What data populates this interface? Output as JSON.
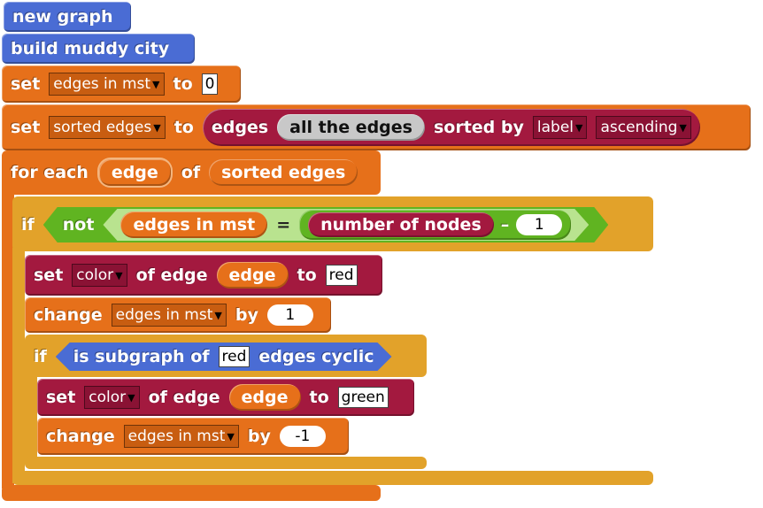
{
  "blocks": {
    "new_graph": "new graph",
    "build_city": "build muddy city",
    "set1": {
      "set": "set",
      "var": "edges in mst",
      "to": "to",
      "value": "0"
    },
    "set2": {
      "set": "set",
      "var": "sorted edges",
      "to": "to",
      "edges": "edges",
      "all_edges": "all the edges",
      "sorted_by": "sorted by",
      "key": "label",
      "order": "ascending"
    },
    "foreach": {
      "for_each": "for each",
      "item": "edge",
      "of": "of",
      "list": "sorted edges"
    },
    "if1": {
      "if": "if",
      "not": "not",
      "lhs": "edges in mst",
      "eq": "=",
      "nodes": "number of nodes",
      "minus": "–",
      "num": "1"
    },
    "set_color1": {
      "set": "set",
      "attr": "color",
      "of_edge": "of edge",
      "edge": "edge",
      "to": "to",
      "value": "red"
    },
    "change1": {
      "change": "change",
      "var": "edges in mst",
      "by": "by",
      "value": "1"
    },
    "if2": {
      "if": "if",
      "is_subgraph_of": "is subgraph of",
      "value": "red",
      "edges_cyclic": "edges cyclic"
    },
    "set_color2": {
      "set": "set",
      "attr": "color",
      "of_edge": "of edge",
      "edge": "edge",
      "to": "to",
      "value": "green"
    },
    "change2": {
      "change": "change",
      "var": "edges in mst",
      "by": "by",
      "value": "-1"
    }
  },
  "colors": {
    "graph_blocks": "#4a6cd4",
    "variables": "#e6701a",
    "control": "#e2a22a",
    "graph_ops": "#a3193f",
    "operators": "#60b421"
  }
}
